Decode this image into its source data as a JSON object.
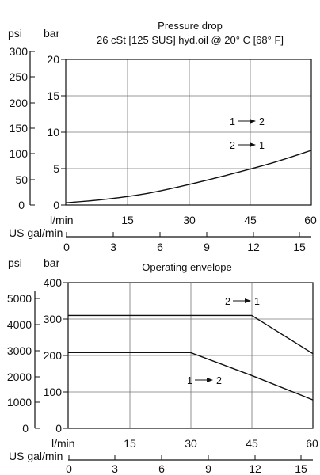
{
  "chart_data": [
    {
      "type": "line",
      "title": "Pressure drop",
      "subtitle": "26 cSt [125 SUS] hyd.oil @ 20° C [68° F]",
      "x_label_primary": "l/min",
      "x_label_secondary": "US gal/min",
      "y_label_primary": "bar",
      "y_label_secondary": "psi",
      "xlim": [
        0,
        60
      ],
      "ylim": [
        0,
        20
      ],
      "x_ticks": [
        "15",
        "30",
        "45",
        "60"
      ],
      "x2_ticks": [
        "0",
        "3",
        "6",
        "9",
        "12",
        "15"
      ],
      "y_ticks": [
        "0",
        "5",
        "10",
        "15",
        "20"
      ],
      "y2_ticks": [
        "0",
        "50",
        "100",
        "150",
        "200",
        "250",
        "300"
      ],
      "legend_labels": [
        "1",
        "2",
        "2",
        "1"
      ],
      "series": [
        {
          "x": [
            0,
            10,
            20,
            30,
            40,
            50,
            60
          ],
          "y": [
            0.3,
            0.8,
            1.6,
            2.8,
            4.2,
            5.7,
            7.5
          ]
        }
      ]
    },
    {
      "type": "line",
      "title": "Operating envelope",
      "x_label_primary": "l/min",
      "x_label_secondary": "US gal/min",
      "y_label_primary": "bar",
      "y_label_secondary": "psi",
      "xlim": [
        0,
        60
      ],
      "ylim": [
        0,
        400
      ],
      "x_ticks": [
        "15",
        "30",
        "45",
        "60"
      ],
      "x2_ticks": [
        "0",
        "3",
        "6",
        "9",
        "12",
        "15"
      ],
      "y_ticks": [
        "0",
        "100",
        "200",
        "300",
        "400"
      ],
      "y2_ticks": [
        "0",
        "1000",
        "2000",
        "3000",
        "4000",
        "5000"
      ],
      "series_labels": [
        "2",
        "1",
        "1",
        "2"
      ],
      "series": [
        {
          "x": [
            0,
            45,
            60
          ],
          "y": [
            310,
            310,
            205
          ]
        },
        {
          "x": [
            0,
            30,
            45,
            60
          ],
          "y": [
            208,
            208,
            145,
            78
          ]
        }
      ]
    }
  ]
}
